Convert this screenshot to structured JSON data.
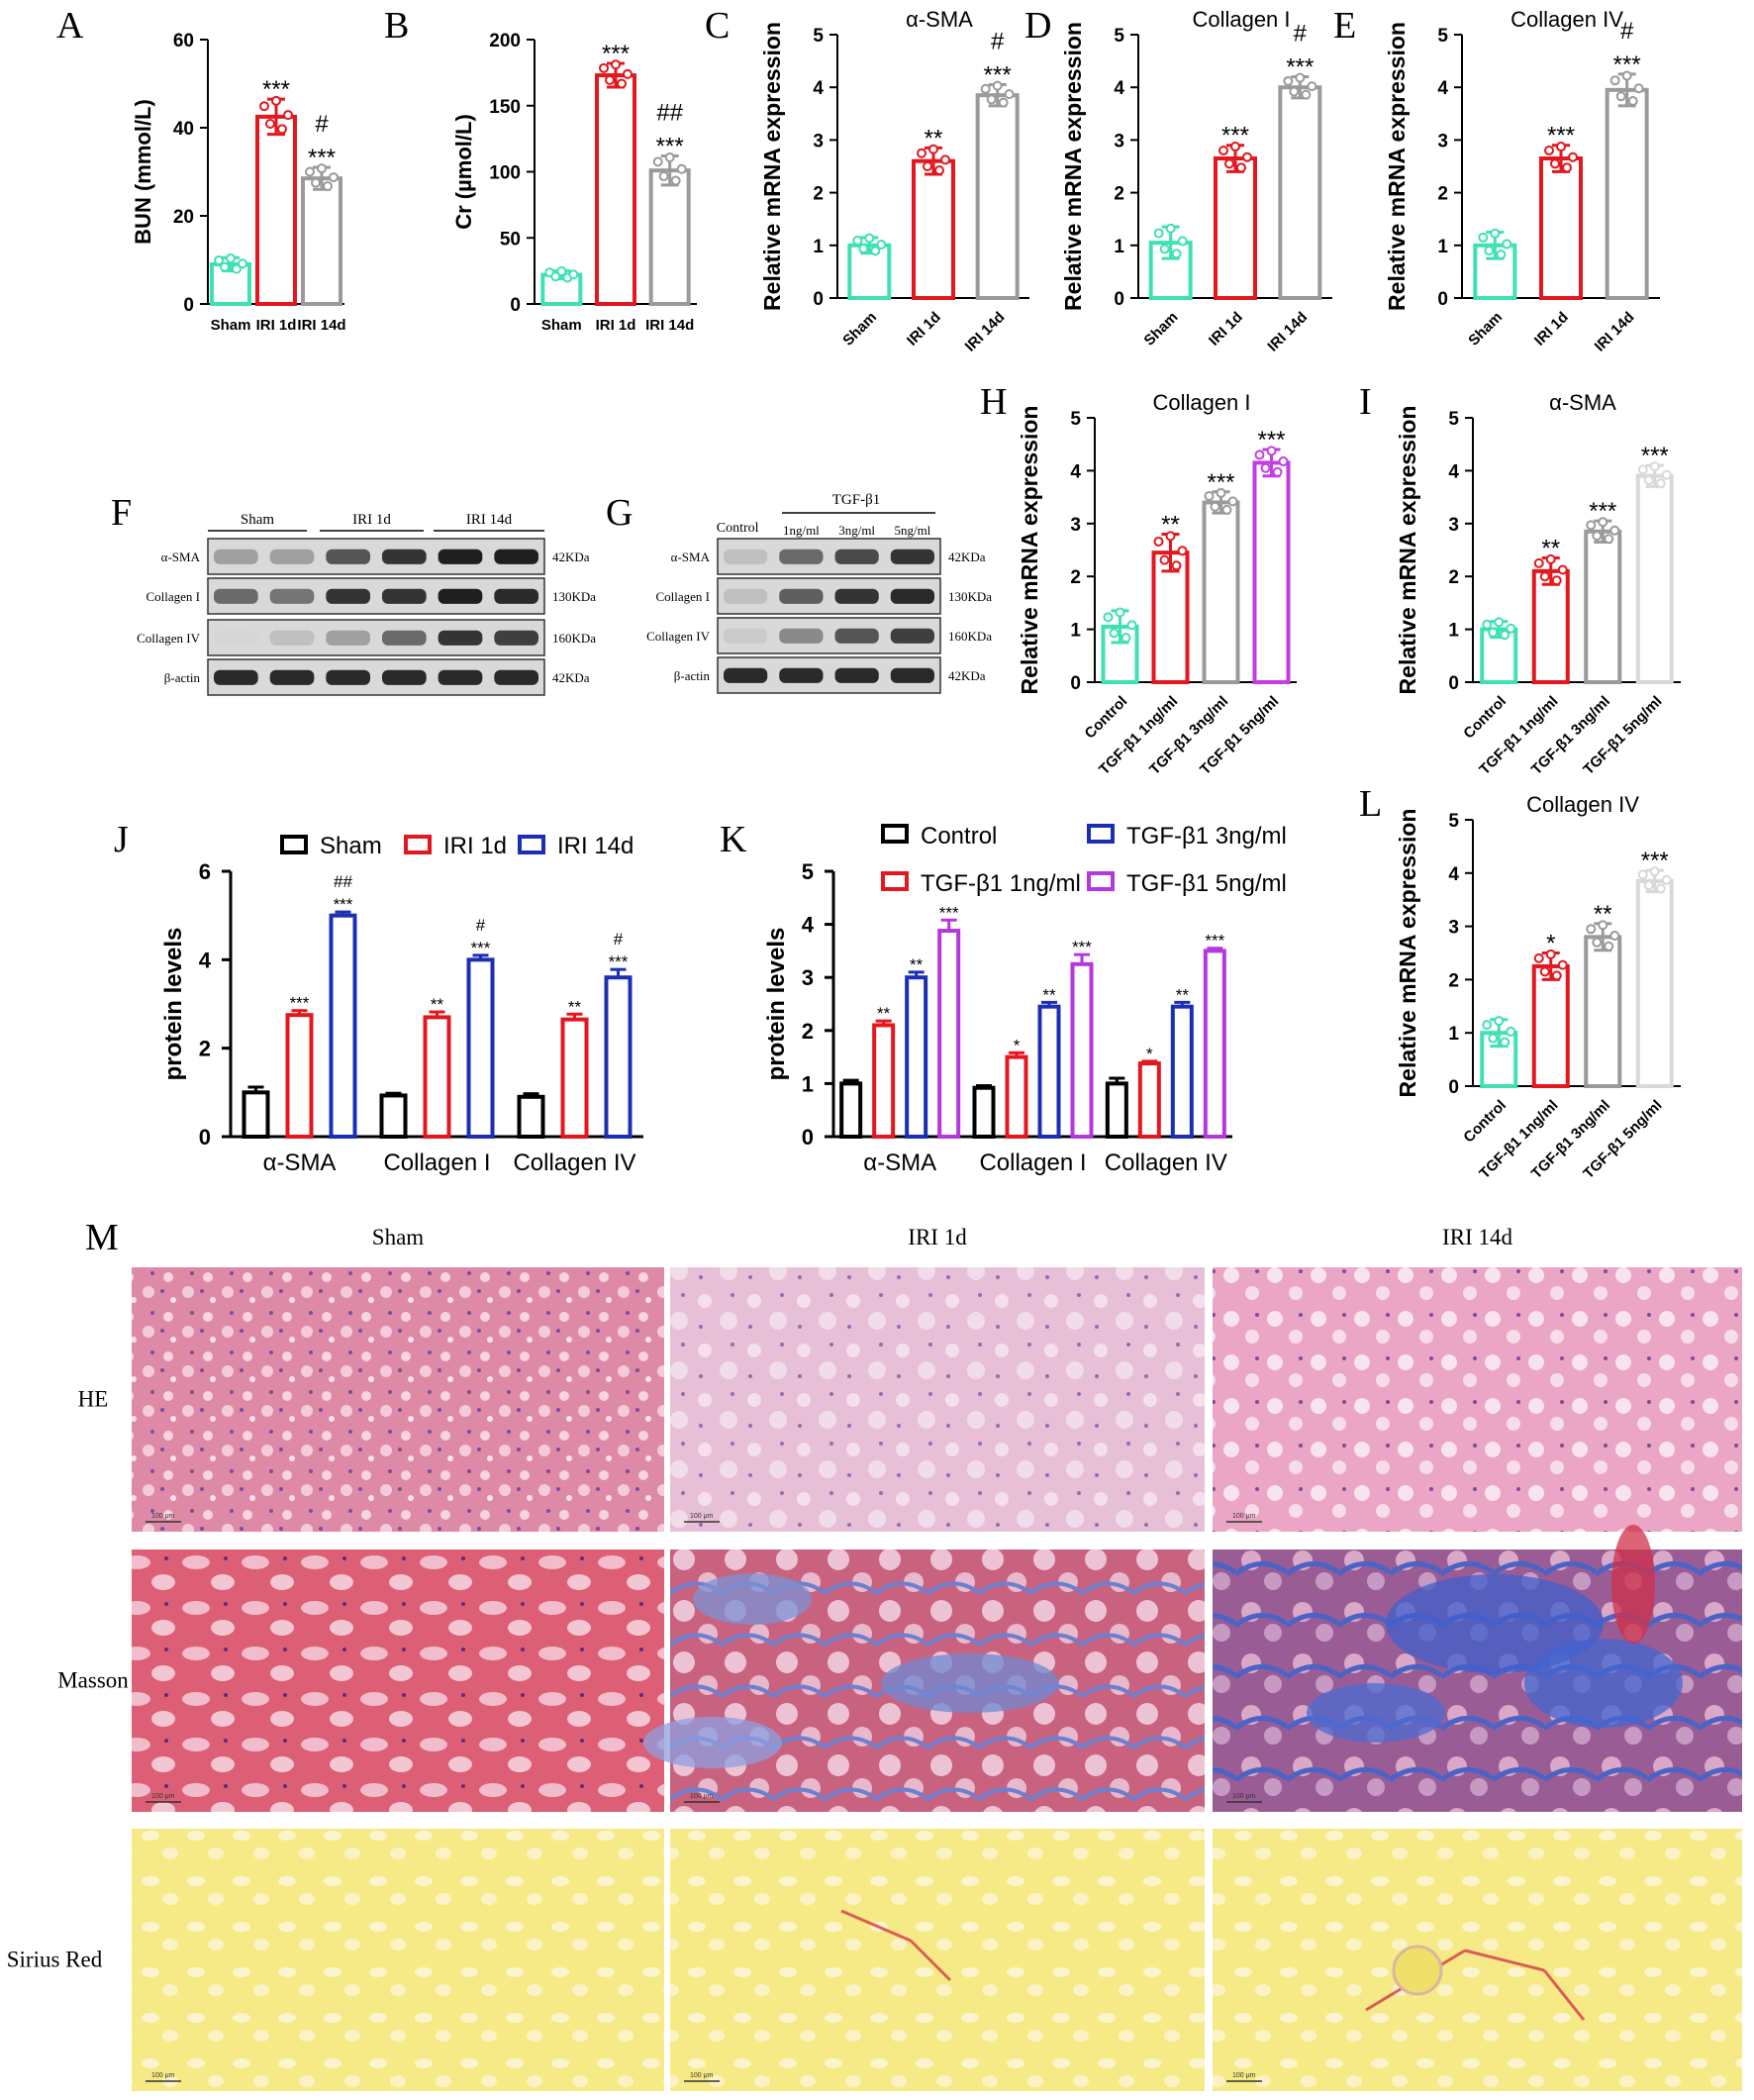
{
  "panel_letters": [
    "A",
    "B",
    "C",
    "D",
    "E",
    "F",
    "G",
    "H",
    "I",
    "J",
    "K",
    "L",
    "M"
  ],
  "colors": {
    "sham": "#3fe0b4",
    "iri1": "#e3171d",
    "iri14": "#9a9a9a",
    "c5": "#c43de3",
    "c5light": "#d8d8d8",
    "jsham": "#000000",
    "jiri1": "#e3171d",
    "jiri14": "#1c2fb4",
    "kblue": "#1c2fb4",
    "kpurple": "#b637e0"
  },
  "chart_data": [
    {
      "id": "A",
      "type": "bar",
      "title": "",
      "ylabel": "BUN (mmol/L)",
      "ylim": [
        0,
        60
      ],
      "yticks": [
        "0",
        "20",
        "40",
        "60"
      ],
      "categories": [
        "Sham",
        "IRI 1d",
        "IRI 14d"
      ],
      "values": [
        9,
        42.5,
        28.5
      ],
      "errors": [
        1.5,
        4,
        2.5
      ],
      "annotations": [
        [
          ""
        ],
        [
          "***"
        ],
        [
          "#",
          "***"
        ]
      ]
    },
    {
      "id": "B",
      "type": "bar",
      "title": "",
      "ylabel": "Cr (µmol/L)",
      "ylim": [
        0,
        200
      ],
      "yticks": [
        "0",
        "50",
        "100",
        "150",
        "200"
      ],
      "categories": [
        "Sham",
        "IRI 1d",
        "IRI 14d"
      ],
      "values": [
        22,
        173,
        101
      ],
      "errors": [
        3,
        9,
        11
      ],
      "annotations": [
        [
          ""
        ],
        [
          "***"
        ],
        [
          "##",
          "***"
        ]
      ]
    },
    {
      "id": "C",
      "type": "bar",
      "title": "α-SMA",
      "ylabel": "Relative mRNA expression",
      "ylim": [
        0,
        5
      ],
      "yticks": [
        "0",
        "1",
        "2",
        "3",
        "4",
        "5"
      ],
      "categories": [
        "Sham",
        "IRI 1d",
        "IRI 14d"
      ],
      "values": [
        1.0,
        2.6,
        3.85
      ],
      "errors": [
        0.15,
        0.25,
        0.2
      ],
      "annotations": [
        [
          ""
        ],
        [
          "**"
        ],
        [
          "#",
          "***"
        ]
      ]
    },
    {
      "id": "D",
      "type": "bar",
      "title": "Collagen I",
      "ylabel": "Relative mRNA expression",
      "ylim": [
        0,
        5
      ],
      "yticks": [
        "0",
        "1",
        "2",
        "3",
        "4",
        "5"
      ],
      "categories": [
        "Sham",
        "IRI 1d",
        "IRI 14d"
      ],
      "values": [
        1.05,
        2.65,
        4.0
      ],
      "errors": [
        0.3,
        0.25,
        0.2
      ],
      "annotations": [
        [
          ""
        ],
        [
          "***"
        ],
        [
          "#",
          "***"
        ]
      ]
    },
    {
      "id": "E",
      "type": "bar",
      "title": "Collagen IV",
      "ylabel": "Relative mRNA expression",
      "ylim": [
        0,
        5
      ],
      "yticks": [
        "0",
        "1",
        "2",
        "3",
        "4",
        "5"
      ],
      "categories": [
        "Sham",
        "IRI 1d",
        "IRI 14d"
      ],
      "values": [
        1.0,
        2.65,
        3.95
      ],
      "errors": [
        0.25,
        0.25,
        0.3
      ],
      "annotations": [
        [
          ""
        ],
        [
          "***"
        ],
        [
          "#",
          "***"
        ]
      ]
    },
    {
      "id": "H",
      "type": "bar",
      "title": "Collagen I",
      "ylabel": "Relative mRNA expression",
      "ylim": [
        0,
        5
      ],
      "yticks": [
        "0",
        "1",
        "2",
        "3",
        "4",
        "5"
      ],
      "categories": [
        "Control",
        "TGF-β1 1ng/ml",
        "TGF-β1 3ng/ml",
        "TGF-β1 5ng/ml"
      ],
      "values": [
        1.05,
        2.45,
        3.4,
        4.15
      ],
      "errors": [
        0.3,
        0.35,
        0.2,
        0.25
      ],
      "annotations": [
        [
          ""
        ],
        [
          "**"
        ],
        [
          "***"
        ],
        [
          "***"
        ]
      ]
    },
    {
      "id": "I",
      "type": "bar",
      "title": "α-SMA",
      "ylabel": "Relative mRNA expression",
      "ylim": [
        0,
        5
      ],
      "yticks": [
        "0",
        "1",
        "2",
        "3",
        "4",
        "5"
      ],
      "categories": [
        "Control",
        "TGF-β1 1ng/ml",
        "TGF-β1 3ng/ml",
        "TGF-β1 5ng/ml"
      ],
      "values": [
        1.0,
        2.1,
        2.85,
        3.9
      ],
      "errors": [
        0.15,
        0.25,
        0.2,
        0.2
      ],
      "annotations": [
        [
          ""
        ],
        [
          "**"
        ],
        [
          "***"
        ],
        [
          "***"
        ]
      ]
    },
    {
      "id": "L",
      "type": "bar",
      "title": "Collagen IV",
      "ylabel": "Relative mRNA expression",
      "ylim": [
        0,
        5
      ],
      "yticks": [
        "0",
        "1",
        "2",
        "3",
        "4",
        "5"
      ],
      "categories": [
        "Control",
        "TGF-β1 1ng/ml",
        "TGF-β1 3ng/ml",
        "TGF-β1 5ng/ml"
      ],
      "values": [
        1.0,
        2.25,
        2.8,
        3.85
      ],
      "errors": [
        0.25,
        0.25,
        0.25,
        0.2
      ],
      "annotations": [
        [
          ""
        ],
        [
          "*"
        ],
        [
          "**"
        ],
        [
          "***"
        ]
      ]
    },
    {
      "id": "J",
      "type": "bar",
      "title": "",
      "ylabel": "protein levels",
      "ylim": [
        0,
        6
      ],
      "yticks": [
        "0",
        "2",
        "4",
        "6"
      ],
      "categories": [
        "α-SMA",
        "Collagen I",
        "Collagen IV"
      ],
      "series": [
        {
          "name": "Sham",
          "values": [
            1.0,
            0.93,
            0.9
          ],
          "errors": [
            0.12,
            0.05,
            0.07
          ],
          "annotations": [
            [
              ""
            ],
            [
              ""
            ],
            [
              ""
            ]
          ]
        },
        {
          "name": "IRI 1d",
          "values": [
            2.75,
            2.7,
            2.65
          ],
          "errors": [
            0.1,
            0.12,
            0.12
          ],
          "annotations": [
            [
              "***"
            ],
            [
              "**"
            ],
            [
              "**"
            ]
          ]
        },
        {
          "name": "IRI 14d",
          "values": [
            5.0,
            4.0,
            3.6
          ],
          "errors": [
            0.08,
            0.1,
            0.18
          ],
          "annotations": [
            [
              "##",
              "***"
            ],
            [
              "#",
              "***"
            ],
            [
              "#",
              "***"
            ]
          ]
        }
      ]
    },
    {
      "id": "K",
      "type": "bar",
      "title": "",
      "ylabel": "protein levels",
      "ylim": [
        0,
        5
      ],
      "yticks": [
        "0",
        "1",
        "2",
        "3",
        "4",
        "5"
      ],
      "categories": [
        "α-SMA",
        "Collagen I",
        "Collagen IV"
      ],
      "series": [
        {
          "name": "Control",
          "values": [
            1.0,
            0.92,
            1.0
          ],
          "errors": [
            0.06,
            0.04,
            0.1
          ],
          "annotations": [
            [
              ""
            ],
            [
              ""
            ],
            [
              ""
            ]
          ]
        },
        {
          "name": "TGF-β1 1ng/ml",
          "values": [
            2.1,
            1.5,
            1.38
          ],
          "errors": [
            0.08,
            0.08,
            0.04
          ],
          "annotations": [
            [
              "**"
            ],
            [
              "*"
            ],
            [
              "*"
            ]
          ]
        },
        {
          "name": "TGF-β1 3ng/ml",
          "values": [
            3.0,
            2.45,
            2.45
          ],
          "errors": [
            0.1,
            0.08,
            0.08
          ],
          "annotations": [
            [
              "**"
            ],
            [
              "**"
            ],
            [
              "**"
            ]
          ]
        },
        {
          "name": "TGF-β1 5ng/ml",
          "values": [
            3.88,
            3.25,
            3.5
          ],
          "errors": [
            0.2,
            0.18,
            0.05
          ],
          "annotations": [
            [
              "***"
            ],
            [
              "***"
            ],
            [
              "***"
            ]
          ]
        }
      ]
    }
  ],
  "blot_F": {
    "groups": [
      "Sham",
      "IRI 1d",
      "IRI 14d"
    ],
    "rows": [
      {
        "label": "α-SMA",
        "kda": "42KDa",
        "intensities": [
          0.35,
          0.35,
          0.7,
          0.85,
          0.95,
          0.95
        ]
      },
      {
        "label": "Collagen I",
        "kda": "130KDa",
        "intensities": [
          0.6,
          0.55,
          0.85,
          0.85,
          0.95,
          0.9
        ]
      },
      {
        "label": "Collagen IV",
        "kda": "160KDa",
        "intensities": [
          0.1,
          0.2,
          0.35,
          0.6,
          0.85,
          0.8
        ]
      },
      {
        "label": "β-actin",
        "kda": "42KDa",
        "intensities": [
          0.9,
          0.9,
          0.9,
          0.9,
          0.9,
          0.9
        ]
      }
    ]
  },
  "blot_G": {
    "header": "TGF-β1",
    "lanes": [
      "Control",
      "1ng/ml",
      "3ng/ml",
      "5ng/ml"
    ],
    "rows": [
      {
        "label": "α-SMA",
        "kda": "42KDa",
        "intensities": [
          0.2,
          0.6,
          0.75,
          0.85
        ]
      },
      {
        "label": "Collagen I",
        "kda": "130KDa",
        "intensities": [
          0.2,
          0.65,
          0.85,
          0.9
        ]
      },
      {
        "label": "Collagen IV",
        "kda": "160KDa",
        "intensities": [
          0.15,
          0.45,
          0.7,
          0.8
        ]
      },
      {
        "label": "β-actin",
        "kda": "42KDa",
        "intensities": [
          0.9,
          0.9,
          0.9,
          0.9
        ]
      }
    ]
  },
  "histology": {
    "columns": [
      "Sham",
      "IRI 1d",
      "IRI 14d"
    ],
    "rows": [
      "HE",
      "Masson",
      "Sirius Red"
    ],
    "scale_bar": "100 μm"
  }
}
